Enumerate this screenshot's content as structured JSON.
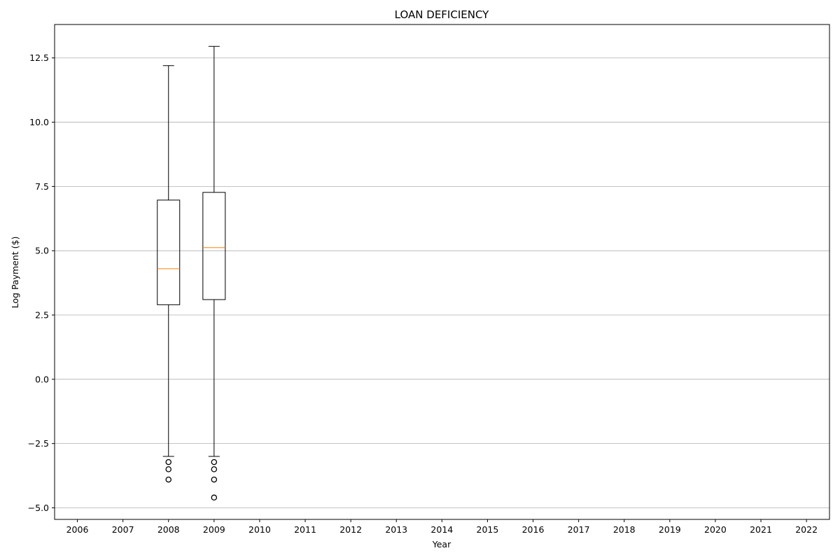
{
  "chart_data": {
    "type": "box",
    "title": "LOAN DEFICIENCY",
    "xlabel": "Year",
    "ylabel": "Log Payment ($)",
    "categories": [
      "2006",
      "2007",
      "2008",
      "2009",
      "2010",
      "2011",
      "2012",
      "2013",
      "2014",
      "2015",
      "2016",
      "2017",
      "2018",
      "2019",
      "2020",
      "2021",
      "2022"
    ],
    "ylim": [
      -5.45,
      13.8
    ],
    "yticks": [
      -5.0,
      -2.5,
      0.0,
      2.5,
      5.0,
      7.5,
      10.0,
      12.5
    ],
    "ytick_labels": [
      "−5.0",
      "−2.5",
      "0.0",
      "2.5",
      "5.0",
      "7.5",
      "10.0",
      "12.5"
    ],
    "grid": "y",
    "boxes": [
      {
        "category": "2008",
        "whisker_low": -3.0,
        "q1": 2.9,
        "median": 4.3,
        "q3": 6.97,
        "whisker_high": 12.2,
        "outliers": [
          -3.22,
          -3.5,
          -3.9
        ]
      },
      {
        "category": "2009",
        "whisker_low": -3.0,
        "q1": 3.1,
        "median": 5.12,
        "q3": 7.27,
        "whisker_high": 12.95,
        "outliers": [
          -3.22,
          -3.5,
          -3.9,
          -4.6
        ]
      }
    ],
    "colors": {
      "box": "#000000",
      "median": "#ff7f0e",
      "grid": "#b0b0b0",
      "axes": "#000000"
    }
  }
}
